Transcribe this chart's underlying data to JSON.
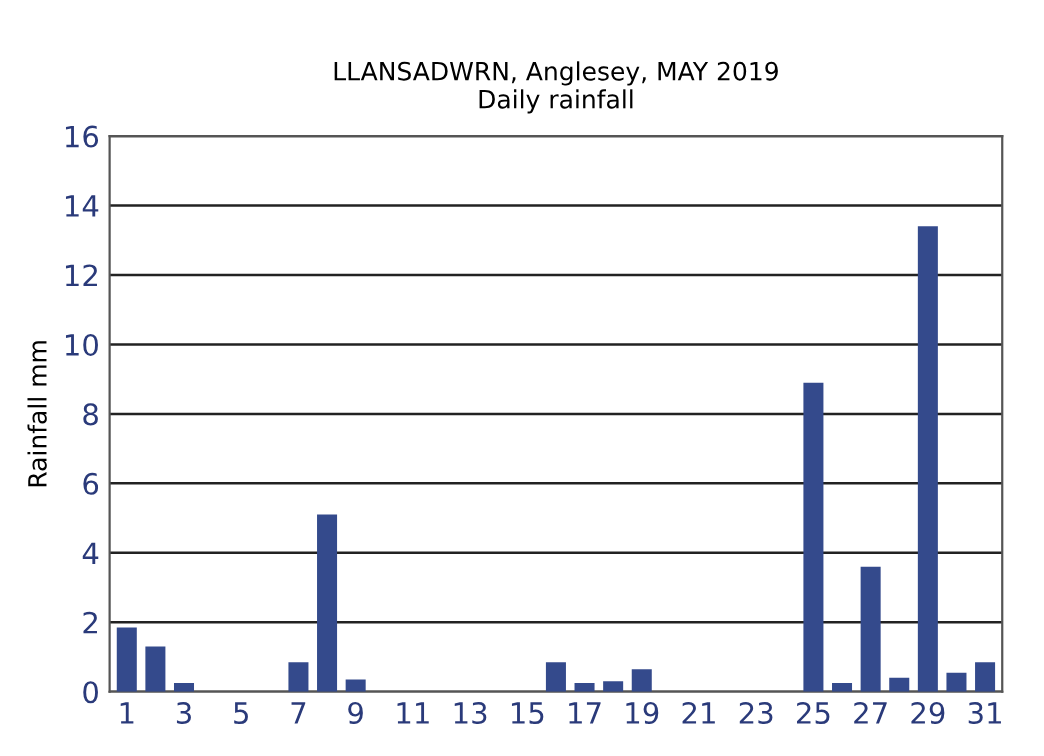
{
  "chart_data": {
    "type": "bar",
    "title": "LLANSADWRN, Anglesey, MAY 2019\nDaily rainfall",
    "ylabel": "Rainfall mm",
    "categories": [
      "1",
      null,
      "3",
      null,
      "5",
      null,
      "7",
      null,
      "9",
      null,
      "11",
      null,
      "13",
      null,
      "15",
      null,
      "17",
      null,
      "19",
      null,
      "21",
      null,
      "23",
      null,
      "25",
      null,
      "27",
      null,
      "29",
      null,
      "31"
    ],
    "values": [
      1.85,
      1.3,
      0.25,
      0,
      0,
      0,
      0.85,
      5.1,
      0.35,
      0,
      0,
      0,
      0,
      0,
      0,
      0.85,
      0.25,
      0.3,
      0.65,
      0,
      0,
      0,
      0,
      0,
      8.9,
      0.25,
      3.6,
      0.4,
      13.4,
      0.55,
      0.85
    ],
    "color": "#344a8c",
    "ylim": [
      0,
      16
    ],
    "yticks": [
      0,
      2,
      4,
      6,
      8,
      10,
      12,
      14,
      16
    ],
    "grid": "y"
  }
}
